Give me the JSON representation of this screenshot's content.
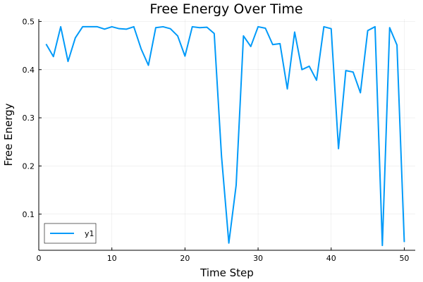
{
  "chart_data": {
    "type": "line",
    "title": "Free Energy Over Time",
    "xlabel": "Time Step",
    "ylabel": "Free Energy",
    "xlim": [
      0,
      51.5
    ],
    "ylim": [
      0.025,
      0.505
    ],
    "xticks": [
      0,
      10,
      20,
      30,
      40,
      50
    ],
    "yticks": [
      0.1,
      0.2,
      0.3,
      0.4,
      0.5
    ],
    "xtick_labels": [
      "0",
      "10",
      "20",
      "30",
      "40",
      "50"
    ],
    "ytick_labels": [
      "0.1",
      "0.2",
      "0.3",
      "0.4",
      "0.5"
    ],
    "grid": true,
    "legend_position": "bottom-left",
    "series": [
      {
        "name": "y1",
        "color": "#009af9",
        "x": [
          1,
          2,
          3,
          4,
          5,
          6,
          7,
          8,
          9,
          10,
          11,
          12,
          13,
          14,
          15,
          16,
          17,
          18,
          19,
          20,
          21,
          22,
          23,
          24,
          25,
          26,
          27,
          28,
          29,
          30,
          31,
          32,
          33,
          34,
          35,
          36,
          37,
          38,
          39,
          40,
          41,
          42,
          43,
          44,
          45,
          46,
          47,
          48,
          49,
          50
        ],
        "values": [
          0.453,
          0.427,
          0.489,
          0.417,
          0.466,
          0.489,
          0.489,
          0.489,
          0.484,
          0.489,
          0.485,
          0.484,
          0.489,
          0.443,
          0.409,
          0.487,
          0.489,
          0.485,
          0.47,
          0.428,
          0.489,
          0.487,
          0.488,
          0.475,
          0.22,
          0.04,
          0.16,
          0.47,
          0.448,
          0.489,
          0.486,
          0.452,
          0.454,
          0.36,
          0.478,
          0.4,
          0.407,
          0.378,
          0.489,
          0.485,
          0.236,
          0.398,
          0.395,
          0.352,
          0.481,
          0.489,
          0.035,
          0.487,
          0.451,
          0.042
        ]
      }
    ]
  }
}
